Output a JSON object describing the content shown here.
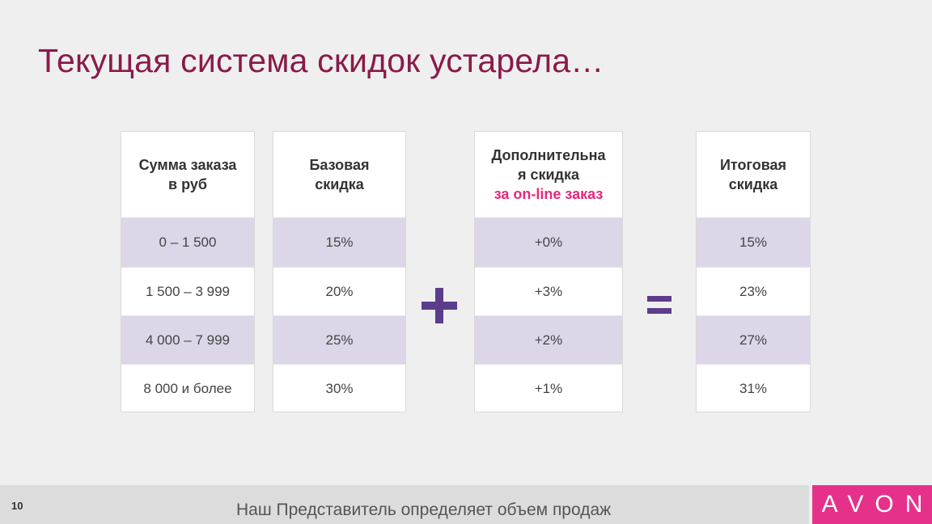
{
  "title": "Текущая система скидок устарела…",
  "columns": [
    {
      "head_lines": [
        "Сумма заказа",
        "в руб"
      ],
      "head_accent": "",
      "cells": [
        "0 – 1 500",
        "1 500 – 3 999",
        "4 000 – 7 999",
        "8 000 и более"
      ]
    },
    {
      "head_lines": [
        "Базовая",
        "скидка"
      ],
      "head_accent": "",
      "cells": [
        "15%",
        "20%",
        "25%",
        "30%"
      ]
    },
    {
      "head_lines": [
        "Дополнительна",
        "я скидка"
      ],
      "head_accent": "за on-line заказ",
      "cells": [
        "+0%",
        "+3%",
        "+2%",
        "+1%"
      ]
    },
    {
      "head_lines": [
        "Итоговая",
        "скидка"
      ],
      "head_accent": "",
      "cells": [
        "15%",
        "23%",
        "27%",
        "31%"
      ]
    }
  ],
  "footer": {
    "page_number": "10",
    "text": "Наш Представитель определяет объем продаж",
    "logo": "AVON"
  },
  "colors": {
    "title": "#8a1a4a",
    "accent": "#e8287c",
    "row_shade": "#dcd6e8",
    "operator": "#5c3d8c",
    "logo_bg": "#e5318a"
  }
}
